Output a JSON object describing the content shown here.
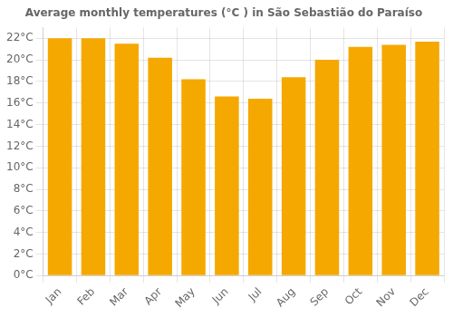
{
  "chart_data": {
    "type": "bar",
    "title": "Average monthly temperatures (°C ) in São Sebastião do Paraíso",
    "categories": [
      "Jan",
      "Feb",
      "Mar",
      "Apr",
      "May",
      "Jun",
      "Jul",
      "Aug",
      "Sep",
      "Oct",
      "Nov",
      "Dec"
    ],
    "values": [
      22.0,
      22.0,
      21.5,
      20.2,
      18.2,
      16.6,
      16.4,
      18.4,
      20.0,
      21.2,
      21.4,
      21.7
    ],
    "color": "#F5A800",
    "ylim": [
      0,
      23
    ],
    "yticks": [
      {
        "value": 0,
        "label": "0°C"
      },
      {
        "value": 2,
        "label": "2°C"
      },
      {
        "value": 4,
        "label": "4°C"
      },
      {
        "value": 6,
        "label": "6°C"
      },
      {
        "value": 8,
        "label": "8°C"
      },
      {
        "value": 10,
        "label": "10°C"
      },
      {
        "value": 12,
        "label": "12°C"
      },
      {
        "value": 14,
        "label": "14°C"
      },
      {
        "value": 16,
        "label": "16°C"
      },
      {
        "value": 18,
        "label": "18°C"
      },
      {
        "value": 20,
        "label": "20°C"
      },
      {
        "value": 22,
        "label": "22°C"
      }
    ],
    "grid": true
  }
}
